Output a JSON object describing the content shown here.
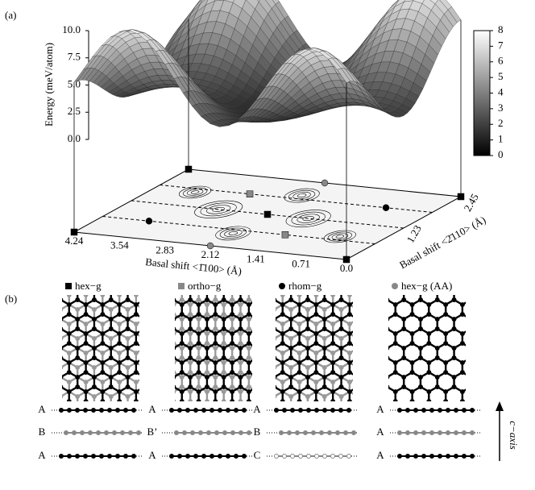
{
  "panel_a": {
    "label": "(a)",
    "z_axis_title": "Energy (meV/atom)",
    "z_ticks": [
      "0.0",
      "2.5",
      "5.0",
      "7.5",
      "10.0"
    ],
    "colorbar_ticks": [
      "0",
      "1",
      "2",
      "3",
      "4",
      "5",
      "6",
      "7",
      "8"
    ],
    "x_axis_title": "Basal shift <1̄100> (Å)",
    "x_ticks": [
      "4.24",
      "3.54",
      "2.83",
      "2.12",
      "1.41",
      "0.71",
      "0.0"
    ],
    "y_axis_title": "Basal shift <2̄110> (Å)",
    "y_ticks": [
      "1.23",
      "2.45"
    ]
  },
  "panel_b": {
    "label": "(b)",
    "legend": [
      "hex−g",
      "ortho−g",
      "rhom−g",
      "hex−g (AA)"
    ],
    "stacks": [
      [
        "A",
        "B",
        "A"
      ],
      [
        "A",
        "B’",
        "A"
      ],
      [
        "A",
        "B",
        "C"
      ],
      [
        "A",
        "A",
        "A"
      ]
    ],
    "axis_label": "c−axis"
  }
}
